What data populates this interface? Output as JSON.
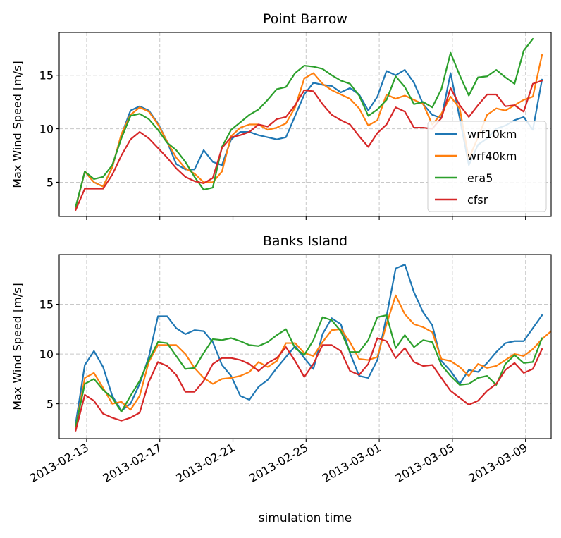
{
  "xlabel": "simulation time",
  "chart_data": [
    {
      "type": "line",
      "title": "Point Barrow",
      "ylabel": "Max Wind Speed [m/s]",
      "xlim": [
        -1.5,
        25.4
      ],
      "ylim": [
        1.8,
        19.0
      ],
      "yticks": [
        5,
        10,
        15
      ],
      "x_day_offsets": [
        0,
        4,
        8,
        12,
        16,
        20,
        24
      ],
      "xtick_labels": [
        "2013-02-13",
        "2013-02-17",
        "2013-02-21",
        "2013-02-25",
        "2013-03-01",
        "2013-03-05",
        "2013-03-09"
      ],
      "show_xtick_labels": false,
      "grid": true,
      "legend": "lower-right",
      "series": [
        {
          "name": "wrf10km",
          "color": "#1f77b4",
          "values": [
            2.6,
            6.0,
            5.0,
            4.6,
            6.4,
            9.4,
            11.7,
            12.1,
            11.7,
            10.5,
            8.8,
            6.7,
            6.2,
            6.2,
            8.0,
            6.9,
            6.6,
            9.0,
            9.7,
            9.7,
            9.4,
            9.2,
            9.0,
            9.2,
            11.2,
            13.2,
            14.3,
            14.1,
            14.0,
            13.4,
            13.8,
            13.2,
            11.7,
            13.0,
            15.4,
            15.0,
            15.5,
            14.3,
            12.3,
            11.3,
            11.0,
            15.2,
            11.0,
            6.6,
            8.5,
            9.1,
            10.0,
            10.3,
            10.8,
            11.1,
            9.9,
            14.6
          ]
        },
        {
          "name": "wrf40km",
          "color": "#ff7f0e",
          "values": [
            2.6,
            6.0,
            5.0,
            4.6,
            6.4,
            9.5,
            11.3,
            12.0,
            11.6,
            10.4,
            8.8,
            7.3,
            6.3,
            5.8,
            5.0,
            5.0,
            6.0,
            9.3,
            10.1,
            10.4,
            10.4,
            9.9,
            10.1,
            10.5,
            12.0,
            14.7,
            15.2,
            14.2,
            13.6,
            13.2,
            12.8,
            11.9,
            10.3,
            10.8,
            13.2,
            12.8,
            13.1,
            12.7,
            12.3,
            10.4,
            11.4,
            13.0,
            11.9,
            7.2,
            9.2,
            11.3,
            11.9,
            11.7,
            12.2,
            12.7,
            13.0,
            16.9
          ]
        },
        {
          "name": "era5",
          "color": "#2ca02c",
          "values": [
            2.7,
            6.0,
            5.3,
            5.5,
            6.6,
            9.1,
            11.2,
            11.4,
            10.9,
            9.9,
            8.7,
            8.0,
            6.9,
            5.5,
            4.3,
            4.5,
            8.3,
            9.9,
            10.6,
            11.3,
            11.8,
            12.7,
            13.7,
            13.9,
            15.2,
            15.9,
            15.8,
            15.6,
            15.0,
            14.5,
            14.2,
            13.1,
            11.2,
            11.8,
            12.7,
            14.9,
            13.9,
            12.3,
            12.5,
            12.0,
            13.7,
            17.1,
            15.0,
            13.1,
            14.8,
            14.9,
            15.5,
            14.8,
            14.2,
            17.3,
            18.4
          ]
        },
        {
          "name": "cfsr",
          "color": "#d62728",
          "values": [
            2.4,
            4.4,
            4.4,
            4.4,
            5.7,
            7.5,
            9.0,
            9.7,
            9.1,
            8.2,
            7.3,
            6.3,
            5.5,
            5.1,
            4.9,
            5.4,
            8.2,
            9.2,
            9.4,
            9.7,
            10.4,
            10.2,
            10.9,
            11.1,
            12.2,
            13.6,
            13.5,
            12.3,
            11.3,
            10.8,
            10.4,
            9.3,
            8.3,
            9.6,
            10.4,
            12.0,
            11.6,
            10.1,
            10.1,
            10.0,
            11.0,
            13.8,
            12.2,
            11.1,
            12.2,
            13.2,
            13.2,
            12.1,
            12.2,
            11.6,
            14.2,
            14.5
          ]
        }
      ]
    },
    {
      "type": "line",
      "title": "Banks Island",
      "ylabel": "Max Wind Speed [m/s]",
      "xlim": [
        -1.5,
        25.4
      ],
      "ylim": [
        1.5,
        20.0
      ],
      "yticks": [
        5,
        10,
        15
      ],
      "x_day_offsets": [
        0,
        4,
        8,
        12,
        16,
        20,
        24
      ],
      "xtick_labels": [
        "2013-02-13",
        "2013-02-17",
        "2013-02-21",
        "2013-02-25",
        "2013-03-01",
        "2013-03-05",
        "2013-03-09"
      ],
      "show_xtick_labels": true,
      "grid": true,
      "legend": "none",
      "series": [
        {
          "name": "wrf10km",
          "color": "#1f77b4",
          "values": [
            3.0,
            8.9,
            10.3,
            8.7,
            5.8,
            4.3,
            5.0,
            7.0,
            9.7,
            13.8,
            13.8,
            12.6,
            12.0,
            12.4,
            12.3,
            11.2,
            8.9,
            7.8,
            5.8,
            5.4,
            6.7,
            7.4,
            8.6,
            9.7,
            10.8,
            9.6,
            8.5,
            12.0,
            13.6,
            13.0,
            10.1,
            7.8,
            7.6,
            9.4,
            13.8,
            18.6,
            19.0,
            16.2,
            14.2,
            12.9,
            9.3,
            8.3,
            7.0,
            8.4,
            8.2,
            9.1,
            10.2,
            11.1,
            11.3,
            11.3,
            12.6,
            13.9
          ]
        },
        {
          "name": "wrf40km",
          "color": "#ff7f0e",
          "values": [
            2.6,
            7.6,
            8.1,
            6.6,
            5.0,
            5.2,
            4.4,
            5.8,
            9.2,
            10.9,
            10.9,
            10.9,
            10.0,
            8.6,
            7.6,
            7.0,
            7.5,
            7.6,
            7.8,
            8.2,
            9.2,
            8.7,
            9.3,
            11.1,
            11.1,
            10.1,
            9.8,
            11.2,
            12.4,
            12.5,
            11.2,
            9.5,
            9.4,
            9.7,
            13.0,
            15.9,
            14.0,
            13.0,
            12.7,
            12.2,
            9.5,
            9.3,
            8.7,
            7.8,
            9.0,
            8.6,
            8.8,
            9.4,
            10.0,
            9.8,
            10.5,
            11.5,
            12.3
          ]
        },
        {
          "name": "era5",
          "color": "#2ca02c",
          "values": [
            2.7,
            7.0,
            7.5,
            6.4,
            5.6,
            4.2,
            5.8,
            7.3,
            9.4,
            11.2,
            11.1,
            9.8,
            8.5,
            8.6,
            10.1,
            11.5,
            11.4,
            11.6,
            11.3,
            10.9,
            10.8,
            11.2,
            11.9,
            12.5,
            10.6,
            9.9,
            11.4,
            13.7,
            13.4,
            12.3,
            10.2,
            10.2,
            11.4,
            13.7,
            13.9,
            10.6,
            11.9,
            10.7,
            11.4,
            11.2,
            8.9,
            7.8,
            6.9,
            7.0,
            7.6,
            7.8,
            6.9,
            9.0,
            9.9,
            9.1,
            9.2,
            11.6
          ]
        },
        {
          "name": "cfsr",
          "color": "#d62728",
          "values": [
            2.3,
            5.9,
            5.3,
            4.0,
            3.6,
            3.3,
            3.6,
            4.1,
            7.2,
            9.2,
            8.8,
            7.9,
            6.2,
            6.2,
            7.3,
            9.0,
            9.6,
            9.6,
            9.4,
            9.0,
            8.3,
            9.1,
            9.6,
            10.7,
            9.3,
            7.7,
            9.0,
            10.9,
            10.9,
            10.3,
            8.3,
            7.9,
            9.0,
            11.6,
            11.3,
            9.6,
            10.6,
            9.2,
            8.8,
            8.9,
            7.6,
            6.3,
            5.6,
            4.9,
            5.3,
            6.3,
            7.0,
            8.4,
            9.1,
            8.1,
            8.5,
            10.5
          ]
        }
      ]
    }
  ]
}
